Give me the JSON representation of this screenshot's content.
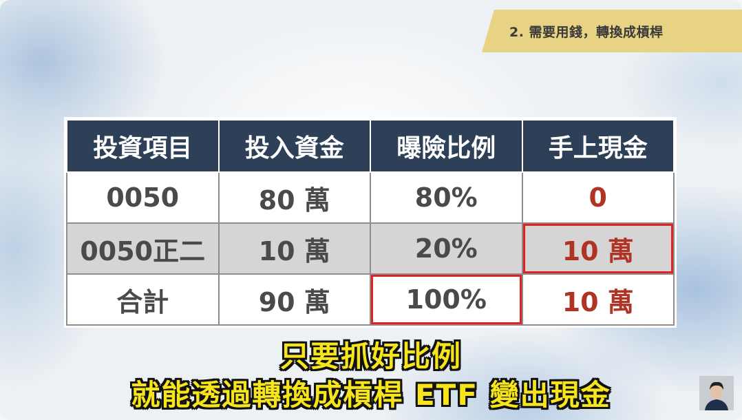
{
  "section_tag": "2. 需要用錢，轉換成槓桿",
  "table": {
    "headers": [
      "投資項目",
      "投入資金",
      "曝險比例",
      "手上現金"
    ],
    "rows": [
      [
        "0050",
        "80 萬",
        "80%",
        "0"
      ],
      [
        "0050正二",
        "10 萬",
        "20%",
        "10 萬"
      ],
      [
        "合計",
        "90 萬",
        "100%",
        "10 萬"
      ]
    ]
  },
  "subtitles": [
    "只要抓好比例",
    "就能透過轉換成槓桿 ETF 變出現金"
  ],
  "colors": {
    "header_bg": "#2e3f58",
    "cash_text": "#b03426",
    "highlight_border": "#e02222",
    "tag_bg": "#e8d384",
    "subtitle_fill": "#f7e51c"
  },
  "icons": {
    "avatar": "presenter-avatar"
  }
}
